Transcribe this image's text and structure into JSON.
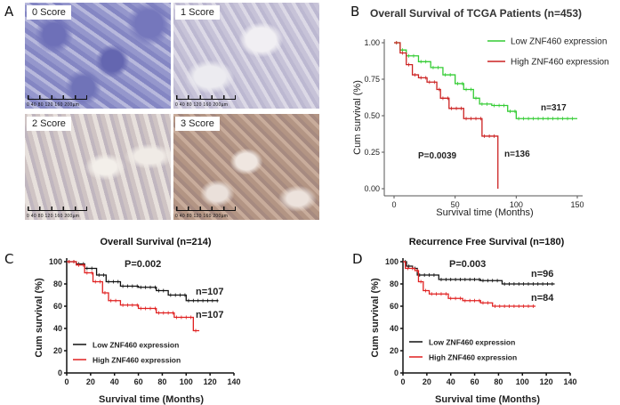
{
  "panel_labels": {
    "a": "A",
    "b": "B",
    "c": "C",
    "d": "D"
  },
  "histology": [
    {
      "score": "0 Score",
      "scale": "0  40  80  120  160  200µm",
      "stain": "negative"
    },
    {
      "score": "1 Score",
      "scale": "0  40  80  120  160  200µm",
      "stain": "weak"
    },
    {
      "score": "2 Score",
      "scale": "0  40  80  120  160  200µm",
      "stain": "moderate"
    },
    {
      "score": "3 Score",
      "scale": "0  40  80  120  160  200µm",
      "stain": "strong"
    }
  ],
  "chart_data": [
    {
      "id": "b",
      "type": "line",
      "step": true,
      "title": "Overall Survival of TCGA Patients (n=453)",
      "xlabel": "Survival time (Months)",
      "ylabel": "Cum survival (%)",
      "xlim": [
        0,
        150
      ],
      "ylim": [
        0,
        1
      ],
      "xticks": [
        0,
        50,
        100,
        150
      ],
      "yticks": [
        "0.00",
        "0.25",
        "0.50",
        "0.75",
        "1.00"
      ],
      "legend_position": "top-right",
      "annotations": {
        "p_value": "P=0.0039",
        "n_low": "n=317",
        "n_high": "n=136"
      },
      "series": [
        {
          "name": "Low ZNF460 expression",
          "color": "#33cc33",
          "points": [
            [
              0,
              1
            ],
            [
              5,
              0.95
            ],
            [
              10,
              0.91
            ],
            [
              20,
              0.87
            ],
            [
              30,
              0.83
            ],
            [
              40,
              0.78
            ],
            [
              50,
              0.72
            ],
            [
              57,
              0.68
            ],
            [
              65,
              0.62
            ],
            [
              70,
              0.58
            ],
            [
              80,
              0.57
            ],
            [
              93,
              0.53
            ],
            [
              100,
              0.48
            ],
            [
              150,
              0.48
            ]
          ]
        },
        {
          "name": "High ZNF460 expression",
          "color": "#cc2222",
          "points": [
            [
              0,
              1
            ],
            [
              5,
              0.93
            ],
            [
              10,
              0.85
            ],
            [
              15,
              0.78
            ],
            [
              20,
              0.76
            ],
            [
              27,
              0.73
            ],
            [
              35,
              0.68
            ],
            [
              38,
              0.62
            ],
            [
              45,
              0.55
            ],
            [
              57,
              0.48
            ],
            [
              72,
              0.36
            ],
            [
              85,
              0.0
            ]
          ]
        }
      ]
    },
    {
      "id": "c",
      "type": "line",
      "step": true,
      "title": "Overall Survival (n=214)",
      "xlabel": "Survival time (Months)",
      "ylabel": "Cum survival (%)",
      "xlim": [
        0,
        140
      ],
      "ylim": [
        0,
        100
      ],
      "xticks": [
        0,
        20,
        40,
        60,
        80,
        100,
        120,
        140
      ],
      "yticks": [
        "0",
        "20",
        "40",
        "60",
        "80",
        "100"
      ],
      "legend_position": "bottom-left",
      "annotations": {
        "p_value": "P=0.002",
        "n_low": "n=107",
        "n_high": "n=107"
      },
      "series": [
        {
          "name": "Low ZNF460 expression",
          "color": "#111111",
          "points": [
            [
              0,
              100
            ],
            [
              8,
              98
            ],
            [
              15,
              94
            ],
            [
              25,
              88
            ],
            [
              33,
              82
            ],
            [
              45,
              78
            ],
            [
              60,
              77
            ],
            [
              75,
              74
            ],
            [
              85,
              70
            ],
            [
              100,
              65
            ],
            [
              127,
              65
            ]
          ]
        },
        {
          "name": "High ZNF460 expression",
          "color": "#e02020",
          "points": [
            [
              0,
              100
            ],
            [
              8,
              97
            ],
            [
              15,
              90
            ],
            [
              22,
              82
            ],
            [
              30,
              72
            ],
            [
              35,
              65
            ],
            [
              45,
              61
            ],
            [
              60,
              58
            ],
            [
              75,
              54
            ],
            [
              90,
              50
            ],
            [
              106,
              50
            ],
            [
              106,
              38
            ],
            [
              111,
              38
            ]
          ]
        }
      ]
    },
    {
      "id": "d",
      "type": "line",
      "step": true,
      "title": "Recurrence Free Survival (n=180)",
      "xlabel": "Survival time (Months)",
      "ylabel": "Cum survival (%)",
      "xlim": [
        0,
        140
      ],
      "ylim": [
        0,
        100
      ],
      "xticks": [
        0,
        20,
        40,
        60,
        80,
        100,
        120,
        140
      ],
      "yticks": [
        "0",
        "20",
        "40",
        "60",
        "80",
        "100"
      ],
      "legend_position": "bottom-left",
      "annotations": {
        "p_value": "P=0.003",
        "n_low": "n=96",
        "n_high": "n=84"
      },
      "series": [
        {
          "name": "Low ZNF460 expression",
          "color": "#111111",
          "points": [
            [
              0,
              100
            ],
            [
              3,
              96
            ],
            [
              8,
              94
            ],
            [
              12,
              88
            ],
            [
              30,
              84
            ],
            [
              65,
              83
            ],
            [
              83,
              80
            ],
            [
              127,
              80
            ]
          ]
        },
        {
          "name": "High ZNF460 expression",
          "color": "#e02020",
          "points": [
            [
              0,
              100
            ],
            [
              2,
              94
            ],
            [
              10,
              92
            ],
            [
              13,
              82
            ],
            [
              17,
              74
            ],
            [
              22,
              71
            ],
            [
              38,
              67
            ],
            [
              50,
              65
            ],
            [
              65,
              63
            ],
            [
              75,
              60
            ],
            [
              111,
              60
            ]
          ]
        }
      ]
    }
  ]
}
